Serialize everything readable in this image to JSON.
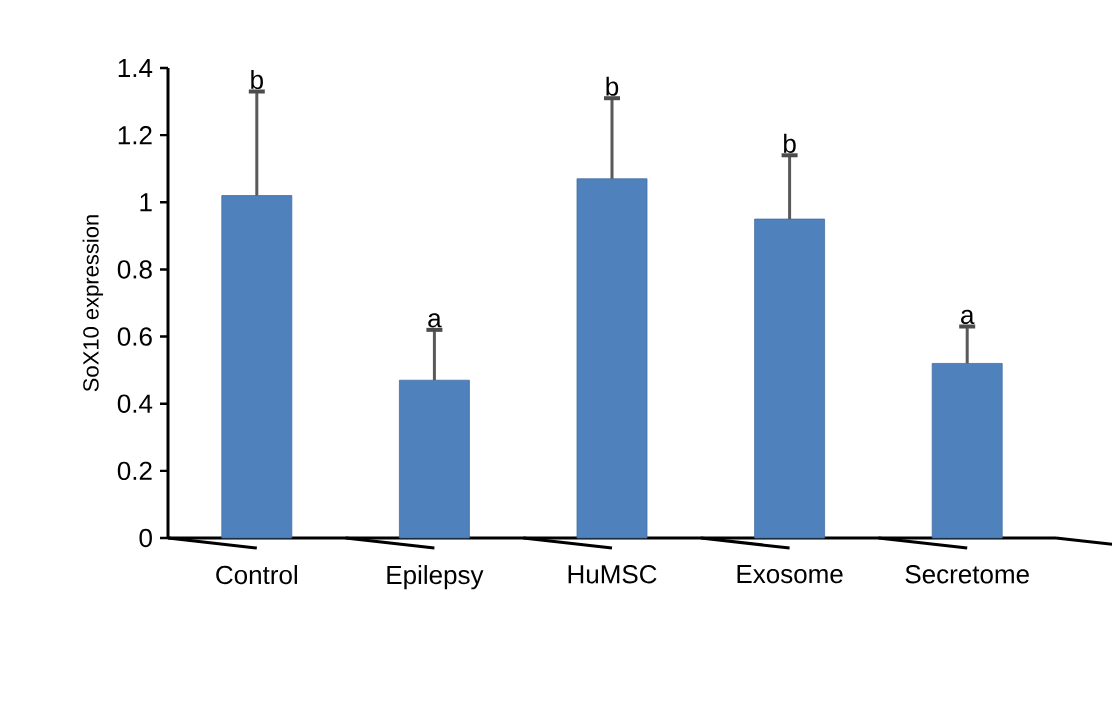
{
  "chart_data": {
    "type": "bar",
    "ylabel": "SoX10 expression",
    "categories": [
      "Control",
      "Epilepsy",
      "HuMSC",
      "Exosome",
      "Secretome"
    ],
    "values": [
      1.02,
      0.47,
      1.07,
      0.95,
      0.52
    ],
    "errors": [
      0.31,
      0.15,
      0.24,
      0.19,
      0.11
    ],
    "color": "#4f81bd",
    "ylim": [
      0,
      1.4
    ],
    "yticks": [
      0,
      0.2,
      0.4,
      0.6,
      0.8,
      1,
      1.2,
      1.4
    ],
    "annotations": [
      {
        "text": "b",
        "x": "Control",
        "y": 1.33
      },
      {
        "text": "a",
        "x": "Epilepsy",
        "y": 0.62
      },
      {
        "text": "b",
        "x": "HuMSC",
        "y": 1.31
      },
      {
        "text": "b",
        "x": "Exosome",
        "y": 1.14
      },
      {
        "text": "a",
        "x": "Secretome",
        "y": 0.63
      }
    ],
    "grid": false
  }
}
